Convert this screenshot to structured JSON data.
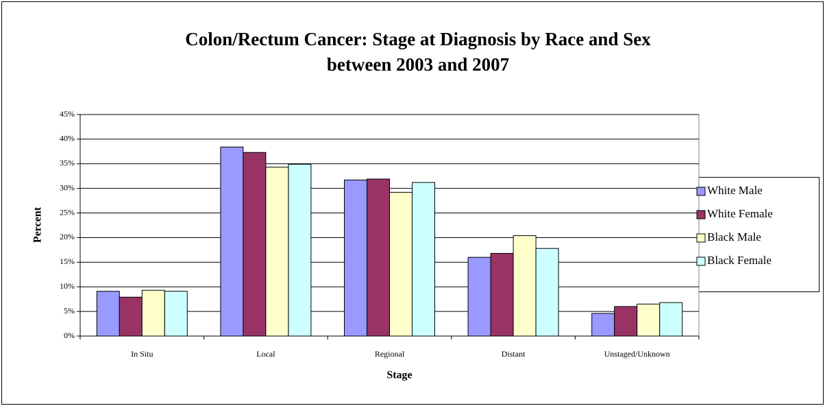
{
  "chart_data": {
    "type": "bar",
    "title": [
      "Colon/Rectum Cancer: Stage at Diagnosis by Race and Sex",
      "between 2003 and 2007"
    ],
    "x_label": "Stage",
    "y_label": "Percent",
    "categories": [
      "In Situ",
      "Local",
      "Regional",
      "Distant",
      "Unstaged/Unknown"
    ],
    "series": [
      {
        "name": "White Male",
        "color": "#9999ff",
        "values": [
          9.1,
          38.4,
          31.7,
          16.0,
          4.6
        ]
      },
      {
        "name": "White Female",
        "color": "#993366",
        "values": [
          7.9,
          37.3,
          31.9,
          16.8,
          6.0
        ]
      },
      {
        "name": "Black Male",
        "color": "#ffffcc",
        "values": [
          9.3,
          34.3,
          29.2,
          20.4,
          6.5
        ]
      },
      {
        "name": "Black Female",
        "color": "#ccffff",
        "values": [
          9.1,
          34.9,
          31.2,
          17.8,
          6.8
        ]
      }
    ],
    "ylim": [
      0,
      45
    ],
    "yticks": [
      {
        "value": 0,
        "label": "0%"
      },
      {
        "value": 5,
        "label": "5%"
      },
      {
        "value": 10,
        "label": "10%"
      },
      {
        "value": 15,
        "label": "15%"
      },
      {
        "value": 20,
        "label": "20%"
      },
      {
        "value": 25,
        "label": "25%"
      },
      {
        "value": 30,
        "label": "30%"
      },
      {
        "value": 35,
        "label": "35%"
      },
      {
        "value": 40,
        "label": "40%"
      },
      {
        "value": 45,
        "label": "45%"
      }
    ],
    "grid": true,
    "legend": "right"
  }
}
